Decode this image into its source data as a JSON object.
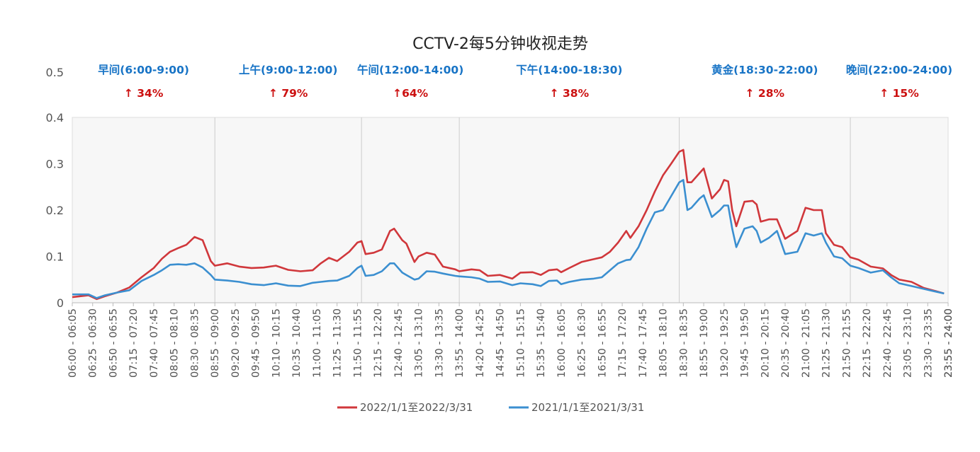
{
  "colors": {
    "series_2022": "#d0373b",
    "series_2021": "#3b8fd0",
    "segment_label": "#1874c6",
    "change_label": "#cc1111",
    "axis_text": "#555555",
    "plot_bg": "#f7f7f7",
    "grid": "#cccccc"
  },
  "chart_data": {
    "type": "line",
    "title": "CCTV-2每5分钟收视走势",
    "xlabel": "",
    "ylabel": "",
    "ylim": [
      0,
      0.4
    ],
    "yticks": [
      {
        "value": 0,
        "label": "0"
      },
      {
        "value": 0.1,
        "label": "0.1"
      },
      {
        "value": 0.2,
        "label": "0.2"
      },
      {
        "value": 0.3,
        "label": "0.3"
      },
      {
        "value": 0.4,
        "label": "0.4"
      }
    ],
    "ytick_extra": {
      "value": 0.5,
      "label": "0.5"
    },
    "x_start": "06:00",
    "x_end": "24:00",
    "x_step_minutes": 5,
    "x_tick_every": 5,
    "legend_position": "bottom",
    "segments": [
      {
        "name": "早间(6:00-9:00)",
        "change": "↑ 34%",
        "start": "06:00",
        "end": "09:00"
      },
      {
        "name": "上午(9:00-12:00)",
        "change": "↑ 79%",
        "start": "09:00",
        "end": "12:00"
      },
      {
        "name": "午间(12:00-14:00)",
        "change": "↑64%",
        "start": "12:00",
        "end": "14:00"
      },
      {
        "name": "下午(14:00-18:30)",
        "change": "↑ 38%",
        "start": "14:00",
        "end": "18:30"
      },
      {
        "name": "黄金(18:30-22:00)",
        "change": "↑ 28%",
        "start": "18:30",
        "end": "22:00"
      },
      {
        "name": "晚间(22:00-24:00)",
        "change": "↑ 15%",
        "start": "22:00",
        "end": "24:00"
      }
    ],
    "series_key_points": [
      {
        "name": "2022/1/1至2022/3/31",
        "points": [
          [
            "06:05",
            0.012
          ],
          [
            "06:25",
            0.016
          ],
          [
            "06:35",
            0.008
          ],
          [
            "06:45",
            0.014
          ],
          [
            "07:00",
            0.022
          ],
          [
            "07:15",
            0.033
          ],
          [
            "07:30",
            0.055
          ],
          [
            "07:45",
            0.075
          ],
          [
            "07:55",
            0.095
          ],
          [
            "08:05",
            0.11
          ],
          [
            "08:15",
            0.118
          ],
          [
            "08:25",
            0.125
          ],
          [
            "08:35",
            0.142
          ],
          [
            "08:45",
            0.135
          ],
          [
            "08:55",
            0.09
          ],
          [
            "09:00",
            0.08
          ],
          [
            "09:15",
            0.085
          ],
          [
            "09:30",
            0.078
          ],
          [
            "09:45",
            0.075
          ],
          [
            "10:00",
            0.076
          ],
          [
            "10:15",
            0.08
          ],
          [
            "10:30",
            0.071
          ],
          [
            "10:45",
            0.068
          ],
          [
            "11:00",
            0.07
          ],
          [
            "11:10",
            0.085
          ],
          [
            "11:20",
            0.097
          ],
          [
            "11:30",
            0.09
          ],
          [
            "11:45",
            0.11
          ],
          [
            "11:55",
            0.13
          ],
          [
            "12:00",
            0.133
          ],
          [
            "12:05",
            0.105
          ],
          [
            "12:15",
            0.108
          ],
          [
            "12:25",
            0.115
          ],
          [
            "12:35",
            0.155
          ],
          [
            "12:40",
            0.16
          ],
          [
            "12:50",
            0.135
          ],
          [
            "12:55",
            0.128
          ],
          [
            "13:05",
            0.088
          ],
          [
            "13:10",
            0.1
          ],
          [
            "13:20",
            0.108
          ],
          [
            "13:30",
            0.104
          ],
          [
            "13:40",
            0.078
          ],
          [
            "13:55",
            0.072
          ],
          [
            "14:00",
            0.068
          ],
          [
            "14:15",
            0.072
          ],
          [
            "14:25",
            0.07
          ],
          [
            "14:35",
            0.058
          ],
          [
            "14:50",
            0.06
          ],
          [
            "15:05",
            0.052
          ],
          [
            "15:15",
            0.065
          ],
          [
            "15:30",
            0.066
          ],
          [
            "15:40",
            0.06
          ],
          [
            "15:50",
            0.07
          ],
          [
            "16:00",
            0.072
          ],
          [
            "16:05",
            0.066
          ],
          [
            "16:15",
            0.075
          ],
          [
            "16:30",
            0.088
          ],
          [
            "16:45",
            0.094
          ],
          [
            "16:55",
            0.098
          ],
          [
            "17:05",
            0.11
          ],
          [
            "17:15",
            0.13
          ],
          [
            "17:25",
            0.155
          ],
          [
            "17:30",
            0.14
          ],
          [
            "17:40",
            0.165
          ],
          [
            "17:50",
            0.2
          ],
          [
            "18:00",
            0.24
          ],
          [
            "18:10",
            0.275
          ],
          [
            "18:20",
            0.3
          ],
          [
            "18:30",
            0.326
          ],
          [
            "18:35",
            0.33
          ],
          [
            "18:40",
            0.26
          ],
          [
            "18:45",
            0.26
          ],
          [
            "18:55",
            0.28
          ],
          [
            "19:00",
            0.29
          ],
          [
            "19:10",
            0.225
          ],
          [
            "19:20",
            0.245
          ],
          [
            "19:25",
            0.265
          ],
          [
            "19:30",
            0.262
          ],
          [
            "19:35",
            0.2
          ],
          [
            "19:40",
            0.165
          ],
          [
            "19:50",
            0.218
          ],
          [
            "20:00",
            0.22
          ],
          [
            "20:05",
            0.212
          ],
          [
            "20:10",
            0.175
          ],
          [
            "20:20",
            0.18
          ],
          [
            "20:30",
            0.18
          ],
          [
            "20:40",
            0.138
          ],
          [
            "20:55",
            0.155
          ],
          [
            "21:05",
            0.205
          ],
          [
            "21:15",
            0.2
          ],
          [
            "21:25",
            0.2
          ],
          [
            "21:30",
            0.15
          ],
          [
            "21:40",
            0.125
          ],
          [
            "21:50",
            0.12
          ],
          [
            "22:00",
            0.098
          ],
          [
            "22:10",
            0.093
          ],
          [
            "22:25",
            0.078
          ],
          [
            "22:40",
            0.074
          ],
          [
            "22:50",
            0.06
          ],
          [
            "23:00",
            0.05
          ],
          [
            "23:15",
            0.045
          ],
          [
            "23:30",
            0.032
          ],
          [
            "23:45",
            0.025
          ],
          [
            "23:55",
            0.02
          ]
        ]
      },
      {
        "name": "2021/1/1至2021/3/31",
        "points": [
          [
            "06:05",
            0.018
          ],
          [
            "06:25",
            0.018
          ],
          [
            "06:35",
            0.01
          ],
          [
            "06:45",
            0.016
          ],
          [
            "07:00",
            0.022
          ],
          [
            "07:15",
            0.027
          ],
          [
            "07:30",
            0.047
          ],
          [
            "07:45",
            0.06
          ],
          [
            "07:55",
            0.07
          ],
          [
            "08:05",
            0.082
          ],
          [
            "08:15",
            0.083
          ],
          [
            "08:25",
            0.082
          ],
          [
            "08:35",
            0.085
          ],
          [
            "08:45",
            0.076
          ],
          [
            "08:55",
            0.06
          ],
          [
            "09:00",
            0.05
          ],
          [
            "09:15",
            0.048
          ],
          [
            "09:30",
            0.045
          ],
          [
            "09:45",
            0.04
          ],
          [
            "10:00",
            0.038
          ],
          [
            "10:15",
            0.042
          ],
          [
            "10:30",
            0.037
          ],
          [
            "10:45",
            0.036
          ],
          [
            "11:00",
            0.043
          ],
          [
            "11:10",
            0.045
          ],
          [
            "11:20",
            0.047
          ],
          [
            "11:30",
            0.048
          ],
          [
            "11:45",
            0.058
          ],
          [
            "11:55",
            0.075
          ],
          [
            "12:00",
            0.08
          ],
          [
            "12:05",
            0.058
          ],
          [
            "12:15",
            0.06
          ],
          [
            "12:25",
            0.068
          ],
          [
            "12:35",
            0.085
          ],
          [
            "12:40",
            0.085
          ],
          [
            "12:50",
            0.065
          ],
          [
            "12:55",
            0.06
          ],
          [
            "13:05",
            0.05
          ],
          [
            "13:10",
            0.052
          ],
          [
            "13:20",
            0.068
          ],
          [
            "13:30",
            0.067
          ],
          [
            "13:40",
            0.063
          ],
          [
            "13:55",
            0.058
          ],
          [
            "14:00",
            0.057
          ],
          [
            "14:15",
            0.055
          ],
          [
            "14:25",
            0.052
          ],
          [
            "14:35",
            0.045
          ],
          [
            "14:50",
            0.046
          ],
          [
            "15:05",
            0.038
          ],
          [
            "15:15",
            0.042
          ],
          [
            "15:30",
            0.04
          ],
          [
            "15:40",
            0.036
          ],
          [
            "15:50",
            0.047
          ],
          [
            "16:00",
            0.048
          ],
          [
            "16:05",
            0.04
          ],
          [
            "16:15",
            0.045
          ],
          [
            "16:30",
            0.05
          ],
          [
            "16:45",
            0.052
          ],
          [
            "16:55",
            0.055
          ],
          [
            "17:05",
            0.07
          ],
          [
            "17:15",
            0.085
          ],
          [
            "17:25",
            0.092
          ],
          [
            "17:30",
            0.093
          ],
          [
            "17:40",
            0.12
          ],
          [
            "17:50",
            0.16
          ],
          [
            "18:00",
            0.195
          ],
          [
            "18:10",
            0.2
          ],
          [
            "18:20",
            0.23
          ],
          [
            "18:30",
            0.26
          ],
          [
            "18:35",
            0.265
          ],
          [
            "18:40",
            0.2
          ],
          [
            "18:45",
            0.205
          ],
          [
            "18:55",
            0.225
          ],
          [
            "19:00",
            0.232
          ],
          [
            "19:10",
            0.185
          ],
          [
            "19:20",
            0.2
          ],
          [
            "19:25",
            0.21
          ],
          [
            "19:30",
            0.21
          ],
          [
            "19:35",
            0.16
          ],
          [
            "19:40",
            0.12
          ],
          [
            "19:50",
            0.16
          ],
          [
            "20:00",
            0.165
          ],
          [
            "20:05",
            0.155
          ],
          [
            "20:10",
            0.13
          ],
          [
            "20:20",
            0.14
          ],
          [
            "20:30",
            0.155
          ],
          [
            "20:40",
            0.105
          ],
          [
            "20:55",
            0.11
          ],
          [
            "21:05",
            0.15
          ],
          [
            "21:15",
            0.145
          ],
          [
            "21:25",
            0.15
          ],
          [
            "21:30",
            0.13
          ],
          [
            "21:40",
            0.1
          ],
          [
            "21:50",
            0.096
          ],
          [
            "22:00",
            0.08
          ],
          [
            "22:10",
            0.075
          ],
          [
            "22:25",
            0.065
          ],
          [
            "22:40",
            0.07
          ],
          [
            "22:50",
            0.055
          ],
          [
            "23:00",
            0.042
          ],
          [
            "23:15",
            0.036
          ],
          [
            "23:30",
            0.03
          ],
          [
            "23:45",
            0.024
          ],
          [
            "23:55",
            0.02
          ]
        ]
      }
    ]
  }
}
